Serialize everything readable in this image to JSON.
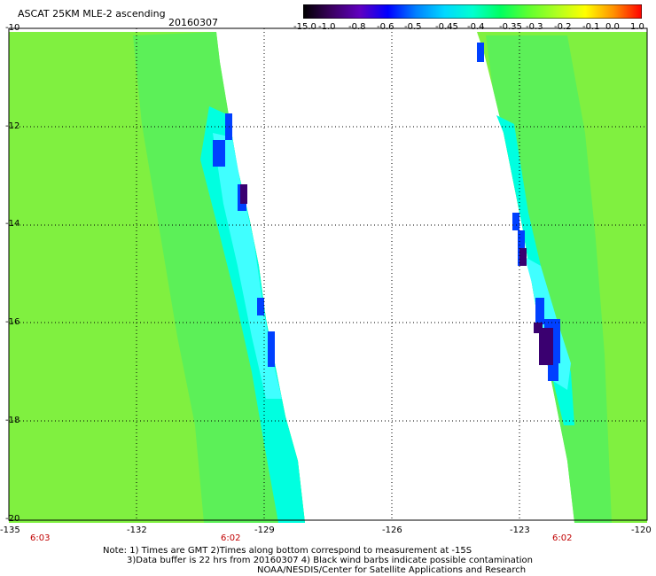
{
  "header": {
    "title": "ASCAT 25KM MLE-2 ascending",
    "date": "20160307"
  },
  "colorbar": {
    "labels": [
      "-15.0",
      "-1.0",
      "-0.8",
      "-0.6",
      "-0.5",
      "-0.45",
      "-0.4",
      "-0.35",
      "-0.3",
      "-0.2",
      "-0.1",
      "0.0",
      "1.0"
    ],
    "colors": [
      "#000000",
      "#3a0060",
      "#6000c0",
      "#0000ff",
      "#0080ff",
      "#00d8ff",
      "#00ffd0",
      "#00ff60",
      "#60ff30",
      "#b0ff20",
      "#ffff00",
      "#ff9000",
      "#ff0000"
    ]
  },
  "map": {
    "lat_labels": [
      "-10",
      "-12",
      "-14",
      "-16",
      "-18",
      "-20"
    ],
    "lon_labels": [
      "-135",
      "-132",
      "-129",
      "-126",
      "-123",
      "-120"
    ],
    "lat_range": [
      -20,
      -10
    ],
    "lon_range": [
      -135,
      -120
    ],
    "times": [
      "6:03",
      "6:02",
      "6:02"
    ],
    "swath_colors": {
      "main": "#80f040",
      "mid": "#5cf058",
      "edge": "#00ffe0",
      "cyan": "#40ffff",
      "blue": "#0040ff",
      "deep": "#3a0070"
    }
  },
  "footer": {
    "note1": "Note: 1) Times are GMT 2)Times along bottom correspond to measurement at -15S",
    "note2": "3)Data buffer is 22 hrs from 20160307 4) Black wind barbs indicate possible contamination",
    "credit": "NOAA/NESDIS/Center for Satellite Applications and Research"
  }
}
